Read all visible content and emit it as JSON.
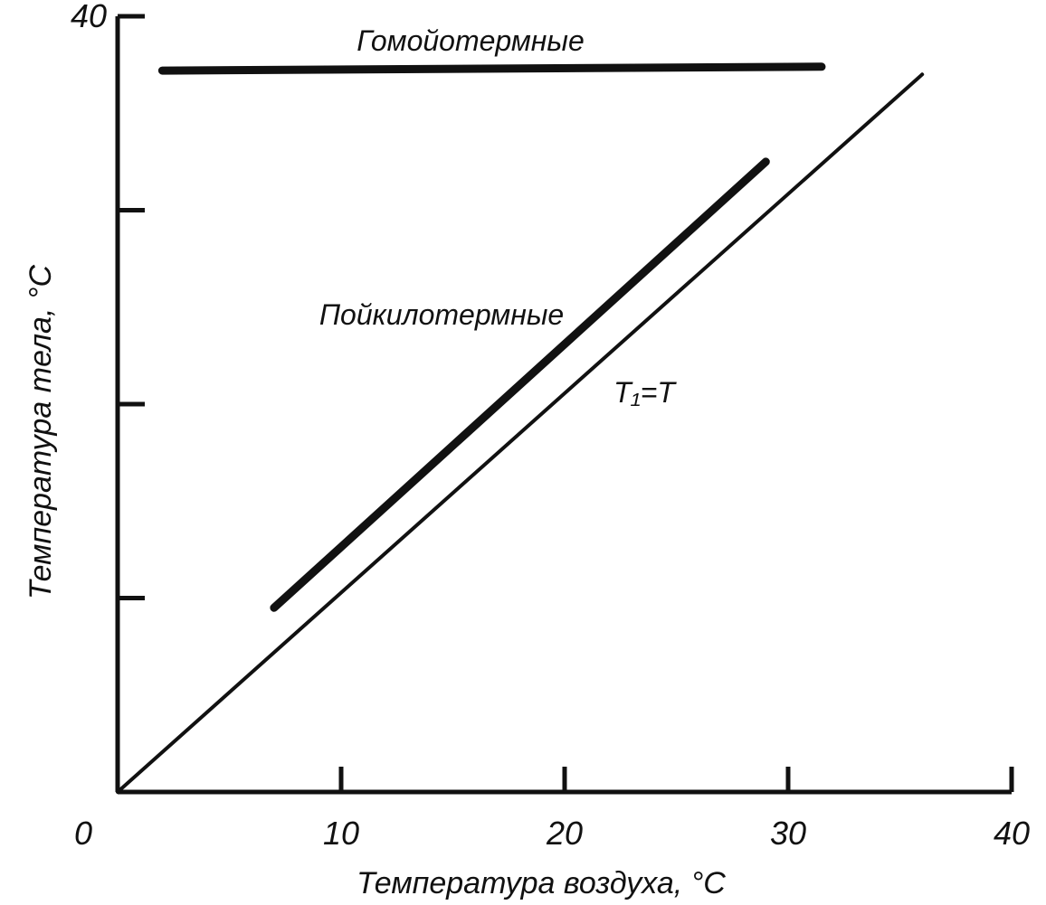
{
  "chart_data": {
    "type": "line",
    "title": "",
    "xlabel": "Температура воздуха, °C",
    "ylabel": "Температура тела, °C",
    "xlim": [
      0,
      40
    ],
    "ylim": [
      0,
      40
    ],
    "x_ticks": [
      0,
      10,
      20,
      30,
      40
    ],
    "x_tick_labels": [
      "0",
      "10",
      "20",
      "30",
      "40"
    ],
    "y_ticks": [
      10,
      20,
      30,
      40
    ],
    "y_tick_labels": [
      "",
      "",
      "",
      "40"
    ],
    "grid": false,
    "legend": "none",
    "series": [
      {
        "name": "Гомойотермные",
        "x": [
          2,
          31.5
        ],
        "y": [
          37.2,
          37.4
        ],
        "color": "#111111",
        "weight": "thick"
      },
      {
        "name": "Пойкилотермные",
        "x": [
          7,
          29
        ],
        "y": [
          9.5,
          32.5
        ],
        "color": "#111111",
        "weight": "thick"
      },
      {
        "name": "T₁=T",
        "x": [
          0,
          36
        ],
        "y": [
          0,
          37
        ],
        "color": "#111111",
        "weight": "thin"
      }
    ]
  }
}
